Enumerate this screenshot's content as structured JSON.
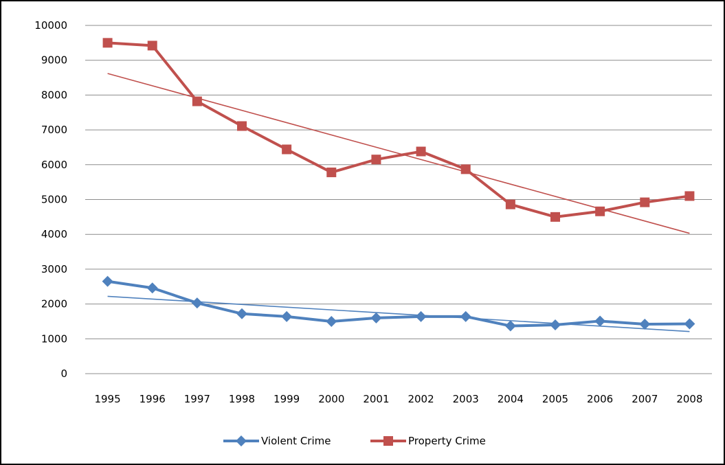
{
  "chart_data": {
    "type": "line",
    "x": [
      "1995",
      "1996",
      "1997",
      "1998",
      "1999",
      "2000",
      "2001",
      "2002",
      "2003",
      "2004",
      "2005",
      "2006",
      "2007",
      "2008"
    ],
    "series": [
      {
        "name": "Violent Crime",
        "values": [
          2650,
          2460,
          2030,
          1720,
          1640,
          1500,
          1600,
          1640,
          1640,
          1370,
          1400,
          1510,
          1420,
          1430
        ],
        "color": "#4F81BD",
        "marker": "diamond"
      },
      {
        "name": "Property Crime",
        "values": [
          9500,
          9420,
          7820,
          7110,
          6440,
          5780,
          6150,
          6380,
          5870,
          4860,
          4500,
          4660,
          4920,
          5100
        ],
        "color": "#C0504D",
        "marker": "square"
      }
    ],
    "trendlines": [
      {
        "series": "Violent Crime",
        "type": "linear",
        "start": 2220,
        "end": 1210
      },
      {
        "series": "Property Crime",
        "type": "linear",
        "start": 8620,
        "end": 4030
      }
    ],
    "yticks": [
      "0",
      "1000",
      "2000",
      "3000",
      "4000",
      "5000",
      "6000",
      "7000",
      "8000",
      "9000",
      "10000"
    ],
    "ylim": [
      0,
      10000
    ],
    "grid": true,
    "legend_position": "bottom"
  }
}
